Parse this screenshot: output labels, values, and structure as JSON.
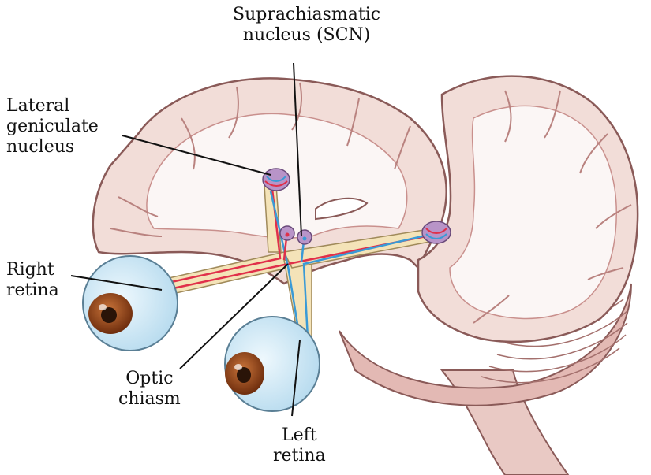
{
  "labels": {
    "scn": [
      "Suprachiasmatic",
      "nucleus (SCN)"
    ],
    "lgn": [
      "Lateral",
      "geniculate",
      "nucleus"
    ],
    "right_retina": [
      "Right",
      "retina"
    ],
    "optic_chiasm": [
      "Optic",
      "chiasm"
    ],
    "left_retina": [
      "Left",
      "retina"
    ]
  },
  "colors": {
    "brain_fill": "#f2ddd8",
    "brain_shade": "#d9a9a6",
    "brain_outline": "#8a5a58",
    "white_matter": "#fbf6f5",
    "eye_fill": "#d6ecf7",
    "iris": "#9a4a1c",
    "pupil": "#2a1408",
    "tract_fill": "#f4e3b8",
    "red_fiber": "#e0304a",
    "blue_fiber": "#3a9ad6",
    "nucleus": "#b894c8",
    "leader": "#111111"
  }
}
